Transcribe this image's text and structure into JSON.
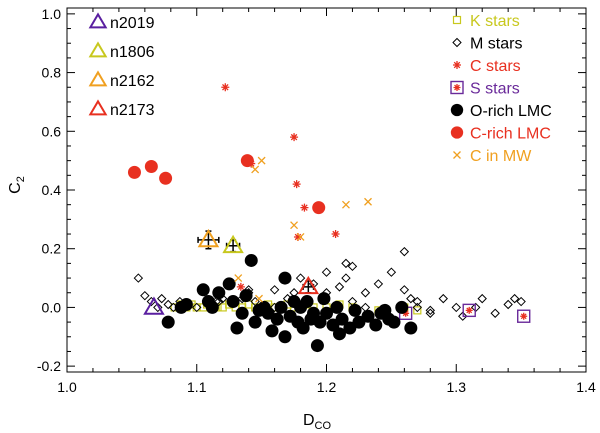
{
  "chart_data": {
    "type": "scatter",
    "xlabel": "D",
    "xlabel_sub": "CO",
    "ylabel": "C",
    "ylabel_sub": "2",
    "xlim": [
      1.0,
      1.4
    ],
    "ylim": [
      -0.22,
      1.02
    ],
    "x_ticks": [
      1.0,
      1.1,
      1.2,
      1.3,
      1.4
    ],
    "x_tick_labels": [
      "1.0",
      "1.1",
      "1.2",
      "1.3",
      "1.4"
    ],
    "y_ticks": [
      -0.2,
      0.0,
      0.2,
      0.4,
      0.6,
      0.8,
      1.0
    ],
    "y_tick_labels": [
      "-0.2",
      "0.0",
      "0.2",
      "0.4",
      "0.6",
      "0.8",
      "1.0"
    ],
    "grid": false,
    "legend_left": {
      "placement": "top-left",
      "entries": [
        {
          "label": "n2019",
          "color": "#5a1fa0",
          "marker": "triangle"
        },
        {
          "label": "n1806",
          "color": "#c8c81e",
          "marker": "triangle"
        },
        {
          "label": "n2162",
          "color": "#f0a020",
          "marker": "triangle"
        },
        {
          "label": "n2173",
          "color": "#e83020",
          "marker": "triangle"
        }
      ]
    },
    "legend_right": {
      "placement": "top-right",
      "entries": [
        {
          "label": "K stars",
          "color": "#c8c81e",
          "marker": "square-open"
        },
        {
          "label": "M stars",
          "color": "#000000",
          "text_color": "#000000",
          "marker": "diamond-open"
        },
        {
          "label": "C stars",
          "color": "#e83020",
          "marker": "asterisk"
        },
        {
          "label": "S stars",
          "color": "#6a2a9a",
          "marker": "boxed-asterisk"
        },
        {
          "label": "O-rich LMC",
          "color": "#000000",
          "text_color": "#000000",
          "marker": "filled-circle"
        },
        {
          "label": "C-rich LMC",
          "color": "#e83020",
          "marker": "filled-circle"
        },
        {
          "label": "C in MW",
          "color": "#f0a020",
          "marker": "cross"
        }
      ]
    },
    "series": [
      {
        "name": "K stars",
        "marker": "square-open",
        "color": "#c8c81e",
        "x": [
          1.083,
          1.088,
          1.092,
          1.096,
          1.1,
          1.105,
          1.108,
          1.112,
          1.116,
          1.12,
          1.125,
          1.13,
          1.135,
          1.14,
          1.145,
          1.15,
          1.155,
          1.16,
          1.165,
          1.17,
          1.175,
          1.18,
          1.185,
          1.19,
          1.2,
          1.21,
          1.22,
          1.24,
          1.26,
          1.27
        ],
        "y": [
          0.0,
          0.01,
          0.0,
          0.01,
          0.0,
          0.0,
          0.01,
          0.0,
          0.0,
          0.0,
          0.01,
          0.0,
          0.0,
          0.01,
          0.0,
          0.0,
          0.01,
          0.0,
          0.0,
          0.01,
          0.0,
          0.0,
          0.01,
          0.0,
          0.0,
          0.01,
          0.0,
          -0.01,
          0.0,
          -0.01
        ]
      },
      {
        "name": "M stars",
        "marker": "diamond-open",
        "color": "#000000",
        "x": [
          1.065,
          1.07,
          1.073,
          1.078,
          1.082,
          1.087,
          1.1,
          1.115,
          1.12,
          1.135,
          1.14,
          1.145,
          1.15,
          1.16,
          1.17,
          1.175,
          1.18,
          1.19,
          1.2,
          1.21,
          1.215,
          1.22,
          1.23,
          1.24,
          1.25,
          1.26,
          1.265,
          1.27,
          1.28,
          1.29,
          1.3,
          1.305,
          1.315,
          1.32,
          1.33,
          1.34,
          1.345,
          1.35,
          1.055,
          1.06,
          1.117,
          1.14,
          1.16,
          1.2,
          1.215,
          1.22,
          1.23,
          1.26,
          1.27,
          1.28
        ],
        "y": [
          0.02,
          0.0,
          0.03,
          0.01,
          0.0,
          0.02,
          0.0,
          0.02,
          0.03,
          0.03,
          0.05,
          0.02,
          0.0,
          0.06,
          0.03,
          0.05,
          0.1,
          0.08,
          0.12,
          0.07,
          0.15,
          0.02,
          0.05,
          0.08,
          0.12,
          0.19,
          0.03,
          0.0,
          -0.02,
          0.03,
          0.0,
          -0.03,
          0.0,
          0.03,
          -0.02,
          0.01,
          0.03,
          0.02,
          0.1,
          0.04,
          0.02,
          0.06,
          0.0,
          0.05,
          0.1,
          0.14,
          0.0,
          0.06,
          0.02,
          -0.01
        ]
      },
      {
        "name": "C stars",
        "marker": "asterisk",
        "color": "#e83020",
        "x": [
          1.122,
          1.142,
          1.175,
          1.177,
          1.183,
          1.178,
          1.207,
          1.134
        ],
        "y": [
          0.75,
          0.49,
          0.58,
          0.42,
          0.34,
          0.24,
          0.25,
          0.07
        ]
      },
      {
        "name": "S stars",
        "marker": "boxed-asterisk",
        "color": "#6a2a9a",
        "x": [
          1.261,
          1.31,
          1.352
        ],
        "y": [
          -0.02,
          -0.01,
          -0.03
        ]
      },
      {
        "name": "O-rich LMC",
        "marker": "filled-circle",
        "color": "#000000",
        "x": [
          1.078,
          1.088,
          1.092,
          1.112,
          1.117,
          1.125,
          1.128,
          1.131,
          1.135,
          1.138,
          1.145,
          1.148,
          1.152,
          1.155,
          1.158,
          1.162,
          1.165,
          1.168,
          1.172,
          1.175,
          1.178,
          1.18,
          1.182,
          1.185,
          1.188,
          1.19,
          1.193,
          1.195,
          1.198,
          1.2,
          1.205,
          1.208,
          1.212,
          1.218,
          1.222,
          1.225,
          1.232,
          1.238,
          1.242,
          1.248,
          1.252,
          1.258,
          1.265,
          1.105,
          1.109,
          1.142,
          1.168,
          1.21,
          1.245
        ],
        "y": [
          -0.05,
          0.0,
          0.01,
          0.0,
          0.05,
          0.08,
          0.02,
          -0.07,
          -0.02,
          0.04,
          -0.05,
          -0.01,
          0.0,
          -0.02,
          -0.08,
          -0.04,
          0.0,
          -0.1,
          -0.03,
          0.02,
          -0.05,
          0.0,
          -0.07,
          0.02,
          -0.04,
          -0.02,
          -0.13,
          -0.05,
          0.03,
          -0.02,
          -0.06,
          0.0,
          -0.04,
          -0.07,
          -0.01,
          -0.05,
          -0.03,
          -0.06,
          -0.02,
          -0.04,
          -0.05,
          0.0,
          -0.07,
          0.06,
          0.02,
          0.16,
          0.1,
          -0.09,
          -0.01
        ]
      },
      {
        "name": "C-rich LMC",
        "marker": "filled-circle",
        "color": "#e83020",
        "x": [
          1.052,
          1.065,
          1.076,
          1.139,
          1.194
        ],
        "y": [
          0.46,
          0.48,
          0.44,
          0.5,
          0.34
        ]
      },
      {
        "name": "C in MW",
        "marker": "cross",
        "color": "#f0a020",
        "x": [
          1.145,
          1.15,
          1.18,
          1.215,
          1.232,
          1.132,
          1.148,
          1.175
        ],
        "y": [
          0.47,
          0.5,
          0.24,
          0.35,
          0.36,
          0.1,
          0.03,
          0.28
        ]
      },
      {
        "name": "n2019",
        "marker": "triangle",
        "color": "#5a1fa0",
        "x": [
          1.067
        ],
        "y": [
          0.0
        ],
        "xerr": [],
        "yerr": []
      },
      {
        "name": "n1806",
        "marker": "triangle",
        "color": "#c8c81e",
        "x": [
          1.128
        ],
        "y": [
          0.21
        ],
        "xerr": [
          0.005
        ],
        "yerr": [
          0.02
        ]
      },
      {
        "name": "n2162",
        "marker": "triangle",
        "color": "#f0a020",
        "x": [
          1.109
        ],
        "y": [
          0.23
        ],
        "xerr": [
          0.008
        ],
        "yerr": [
          0.03
        ]
      },
      {
        "name": "n2173",
        "marker": "triangle",
        "color": "#e83020",
        "x": [
          1.186
        ],
        "y": [
          0.07
        ],
        "xerr": [
          0.004
        ],
        "yerr": [
          0.02
        ]
      }
    ]
  }
}
